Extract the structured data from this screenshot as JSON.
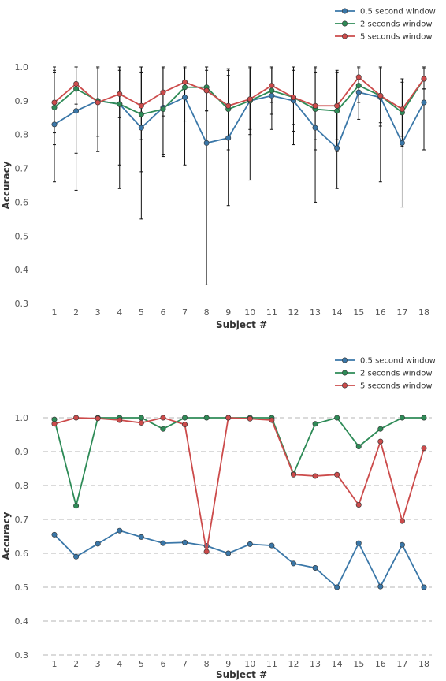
{
  "chart_data": [
    {
      "type": "line",
      "xlabel": "Subject #",
      "ylabel": "Accuracy",
      "ylim": [
        0.3,
        1.0
      ],
      "x": [
        1,
        2,
        3,
        4,
        5,
        6,
        7,
        8,
        9,
        10,
        11,
        12,
        13,
        14,
        15,
        16,
        17,
        18
      ],
      "yticks": [
        "0.3",
        "0.4",
        "0.5",
        "0.6",
        "0.7",
        "0.8",
        "0.9",
        "1.0"
      ],
      "grid": false,
      "error_bars": true,
      "legend_position": "top-right",
      "series": [
        {
          "name": "0.5 second window",
          "color": "#3a77a8",
          "values": [
            0.83,
            0.87,
            0.9,
            0.89,
            0.82,
            0.88,
            0.91,
            0.775,
            0.79,
            0.9,
            0.915,
            0.9,
            0.82,
            0.76,
            0.925,
            0.91,
            0.775,
            0.895
          ],
          "errors": [
            0.17,
            0.235,
            0.15,
            0.25,
            0.27,
            0.14,
            0.2,
            0.42,
            0.2,
            0.235,
            0.1,
            0.13,
            0.22,
            0.12,
            0.08,
            0.25,
            0.19,
            0.14
          ]
        },
        {
          "name": "2 seconds window",
          "color": "#2e8b57",
          "values": [
            0.88,
            0.935,
            0.9,
            0.89,
            0.86,
            0.875,
            0.94,
            0.94,
            0.875,
            0.9,
            0.93,
            0.91,
            0.875,
            0.87,
            0.945,
            0.915,
            0.865,
            0.965
          ],
          "errors": [
            0.11,
            0.19,
            0.15,
            0.18,
            0.17,
            0.14,
            0.1,
            0.07,
            0.12,
            0.1,
            0.07,
            0.1,
            0.12,
            0.12,
            0.05,
            0.09,
            0.1,
            0.03
          ]
        },
        {
          "name": "5 seconds window",
          "color": "#cc4b4b",
          "values": [
            0.895,
            0.95,
            0.895,
            0.92,
            0.885,
            0.925,
            0.955,
            0.93,
            0.885,
            0.905,
            0.945,
            0.91,
            0.885,
            0.885,
            0.97,
            0.915,
            0.875,
            0.965
          ],
          "errors": [
            0.09,
            0.06,
            0.1,
            0.07,
            0.1,
            0.07,
            0.04,
            0.06,
            0.09,
            0.09,
            0.05,
            0.08,
            0.1,
            0.1,
            0.03,
            0.08,
            0.08,
            0.03
          ]
        }
      ]
    },
    {
      "type": "line",
      "xlabel": "Subject #",
      "ylabel": "Accuracy",
      "ylim": [
        0.3,
        1.0
      ],
      "x": [
        1,
        2,
        3,
        4,
        5,
        6,
        7,
        8,
        9,
        10,
        11,
        12,
        13,
        14,
        15,
        16,
        17,
        18
      ],
      "yticks": [
        "0.3",
        "0.4",
        "0.5",
        "0.6",
        "0.7",
        "0.8",
        "0.9",
        "1.0"
      ],
      "grid": true,
      "error_bars": false,
      "legend_position": "top-right",
      "series": [
        {
          "name": "0.5 second window",
          "color": "#3a77a8",
          "values": [
            0.655,
            0.59,
            0.628,
            0.667,
            0.648,
            0.63,
            0.632,
            0.622,
            0.6,
            0.627,
            0.623,
            0.57,
            0.557,
            0.5,
            0.63,
            0.502,
            0.625,
            0.5
          ]
        },
        {
          "name": "2 seconds window",
          "color": "#2e8b57",
          "values": [
            0.995,
            0.74,
            1.0,
            1.0,
            1.0,
            0.967,
            1.0,
            1.0,
            1.0,
            1.0,
            1.0,
            0.835,
            0.982,
            1.0,
            0.915,
            0.967,
            1.0,
            1.0
          ]
        },
        {
          "name": "5 seconds window",
          "color": "#cc4b4b",
          "values": [
            0.982,
            1.0,
            0.998,
            0.993,
            0.985,
            1.0,
            0.98,
            0.605,
            1.0,
            0.997,
            0.993,
            0.832,
            0.828,
            0.832,
            0.743,
            0.93,
            0.695,
            0.91
          ]
        }
      ]
    }
  ]
}
